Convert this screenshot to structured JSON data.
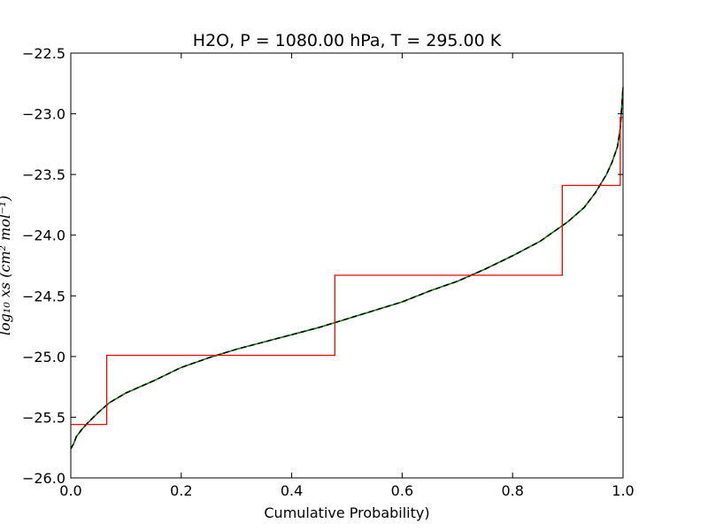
{
  "chart_data": {
    "type": "line",
    "title": "H2O, P = 1080.00 hPa, T = 295.00 K",
    "xlabel": "Cumulative Probability)",
    "ylabel": "log₁₀ xs (cm² mol⁻¹)",
    "xlim": [
      0.0,
      1.0
    ],
    "ylim": [
      -26.0,
      -22.5
    ],
    "x_ticks": [
      0.0,
      0.2,
      0.4,
      0.6,
      0.8,
      1.0
    ],
    "x_tick_labels": [
      "0.0",
      "0.2",
      "0.4",
      "0.6",
      "0.8",
      "1.0"
    ],
    "y_ticks": [
      -26.0,
      -25.5,
      -25.0,
      -24.5,
      -24.0,
      -23.5,
      -23.0,
      -22.5
    ],
    "y_tick_labels": [
      "−26.0",
      "−25.5",
      "−25.0",
      "−24.5",
      "−24.0",
      "−23.5",
      "−23.0",
      "−22.5"
    ],
    "grid": false,
    "series": [
      {
        "color": "#008000",
        "x": [
          0.0,
          0.005,
          0.01,
          0.02,
          0.03,
          0.05,
          0.07,
          0.1,
          0.15,
          0.2,
          0.25,
          0.3,
          0.35,
          0.4,
          0.45,
          0.5,
          0.55,
          0.6,
          0.65,
          0.7,
          0.75,
          0.8,
          0.85,
          0.9,
          0.93,
          0.95,
          0.97,
          0.98,
          0.99,
          0.995,
          1.0
        ],
        "values": [
          -25.76,
          -25.72,
          -25.66,
          -25.6,
          -25.55,
          -25.46,
          -25.38,
          -25.3,
          -25.2,
          -25.09,
          -25.01,
          -24.94,
          -24.88,
          -24.82,
          -24.76,
          -24.69,
          -24.62,
          -24.55,
          -24.46,
          -24.38,
          -24.28,
          -24.17,
          -24.05,
          -23.89,
          -23.77,
          -23.65,
          -23.5,
          -23.4,
          -23.27,
          -23.12,
          -22.78
        ]
      },
      {
        "color": "#000000",
        "x": [
          0.0,
          0.005,
          0.01,
          0.02,
          0.03,
          0.05,
          0.07,
          0.1,
          0.15,
          0.2,
          0.25,
          0.3,
          0.35,
          0.4,
          0.45,
          0.5,
          0.55,
          0.6,
          0.65,
          0.7,
          0.75,
          0.8,
          0.85,
          0.9,
          0.93,
          0.95,
          0.97,
          0.98,
          0.99,
          0.995,
          1.0
        ],
        "values": [
          -25.76,
          -25.72,
          -25.66,
          -25.6,
          -25.55,
          -25.46,
          -25.38,
          -25.3,
          -25.2,
          -25.09,
          -25.01,
          -24.94,
          -24.88,
          -24.82,
          -24.76,
          -24.69,
          -24.62,
          -24.55,
          -24.46,
          -24.38,
          -24.28,
          -24.17,
          -24.05,
          -23.89,
          -23.77,
          -23.65,
          -23.5,
          -23.4,
          -23.27,
          -23.12,
          -22.78
        ]
      },
      {
        "color": "#ff0000",
        "step": true,
        "x": [
          0.0,
          0.065,
          0.065,
          0.478,
          0.478,
          0.89,
          0.89,
          0.995,
          0.995,
          1.0
        ],
        "values": [
          -25.56,
          -25.56,
          -24.99,
          -24.99,
          -24.33,
          -24.33,
          -23.59,
          -23.59,
          -23.03,
          -23.03
        ]
      }
    ]
  }
}
